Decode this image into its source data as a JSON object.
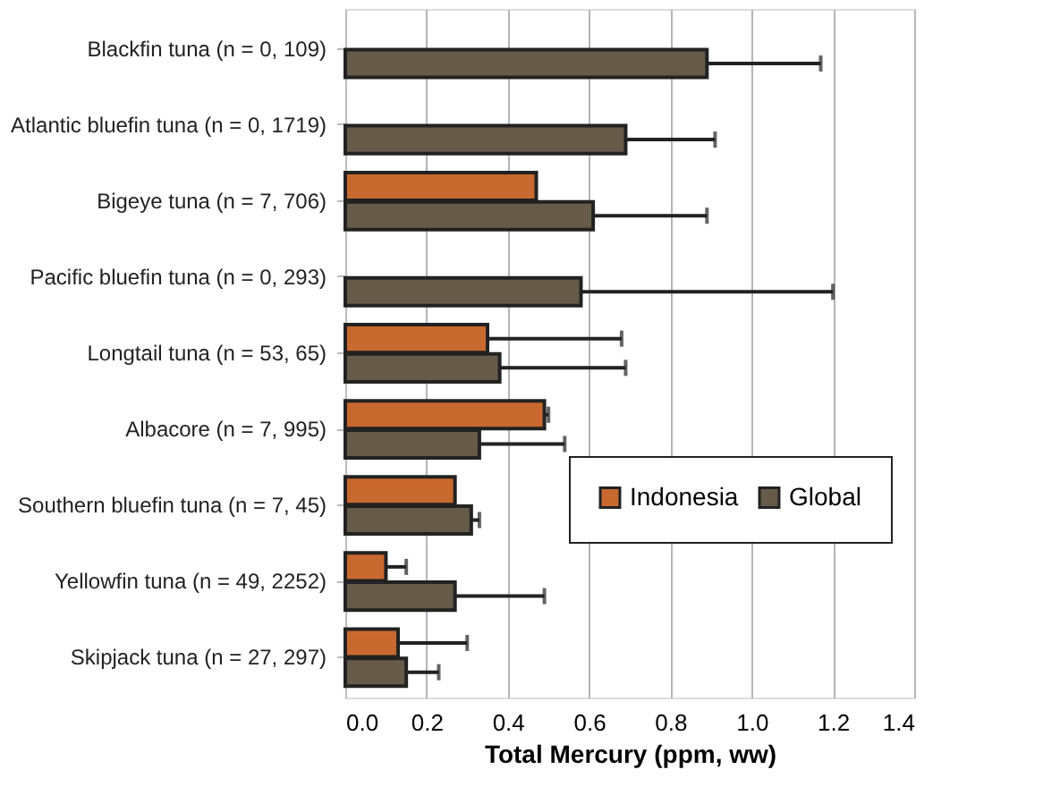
{
  "chart_data": {
    "type": "bar",
    "orientation": "horizontal",
    "xlabel": "Total Mercury (ppm, ww)",
    "categories": [
      "Blackfin tuna (n = 0, 109)",
      "Atlantic bluefin tuna (n = 0, 1719)",
      "Bigeye tuna (n = 7, 706)",
      "Pacific bluefin tuna (n = 0, 293)",
      "Longtail tuna (n = 53, 65)",
      "Albacore (n = 7, 995)",
      "Southern bluefin tuna (n = 7, 45)",
      "Yellowfin tuna (n = 49, 2252)",
      "Skipjack tuna (n = 27, 297)"
    ],
    "series": [
      {
        "name": "Indonesia",
        "color": "#c8692f",
        "values": [
          null,
          null,
          0.47,
          null,
          0.35,
          0.49,
          0.27,
          0.1,
          0.13
        ],
        "errors": [
          null,
          null,
          null,
          null,
          [
            0.35,
            0.68
          ],
          [
            0.49,
            0.5
          ],
          null,
          [
            0.1,
            0.15
          ],
          [
            0.13,
            0.3
          ]
        ]
      },
      {
        "name": "Global",
        "color": "#665a48",
        "values": [
          0.89,
          0.69,
          0.61,
          0.58,
          0.38,
          0.33,
          0.31,
          0.27,
          0.15
        ],
        "errors": [
          [
            0.89,
            1.17
          ],
          [
            0.69,
            0.91
          ],
          [
            0.61,
            0.89
          ],
          [
            0.58,
            1.2
          ],
          [
            0.38,
            0.69
          ],
          [
            0.33,
            0.54
          ],
          [
            0.31,
            0.33
          ],
          [
            0.27,
            0.49
          ],
          [
            0.15,
            0.23
          ]
        ]
      }
    ],
    "xlim": [
      0,
      1.4
    ],
    "xticks": [
      {
        "value": 0,
        "label": "0.0"
      },
      {
        "value": 0.2,
        "label": "0.2"
      },
      {
        "value": 0.4,
        "label": "0.4"
      },
      {
        "value": 0.6,
        "label": "0.6"
      },
      {
        "value": 0.8,
        "label": "0.8"
      },
      {
        "value": 1,
        "label": "1.0"
      },
      {
        "value": 1.2,
        "label": "1.2"
      },
      {
        "value": 1.4,
        "label": "1.4"
      }
    ],
    "grid": "x",
    "legend": "bottom right"
  }
}
